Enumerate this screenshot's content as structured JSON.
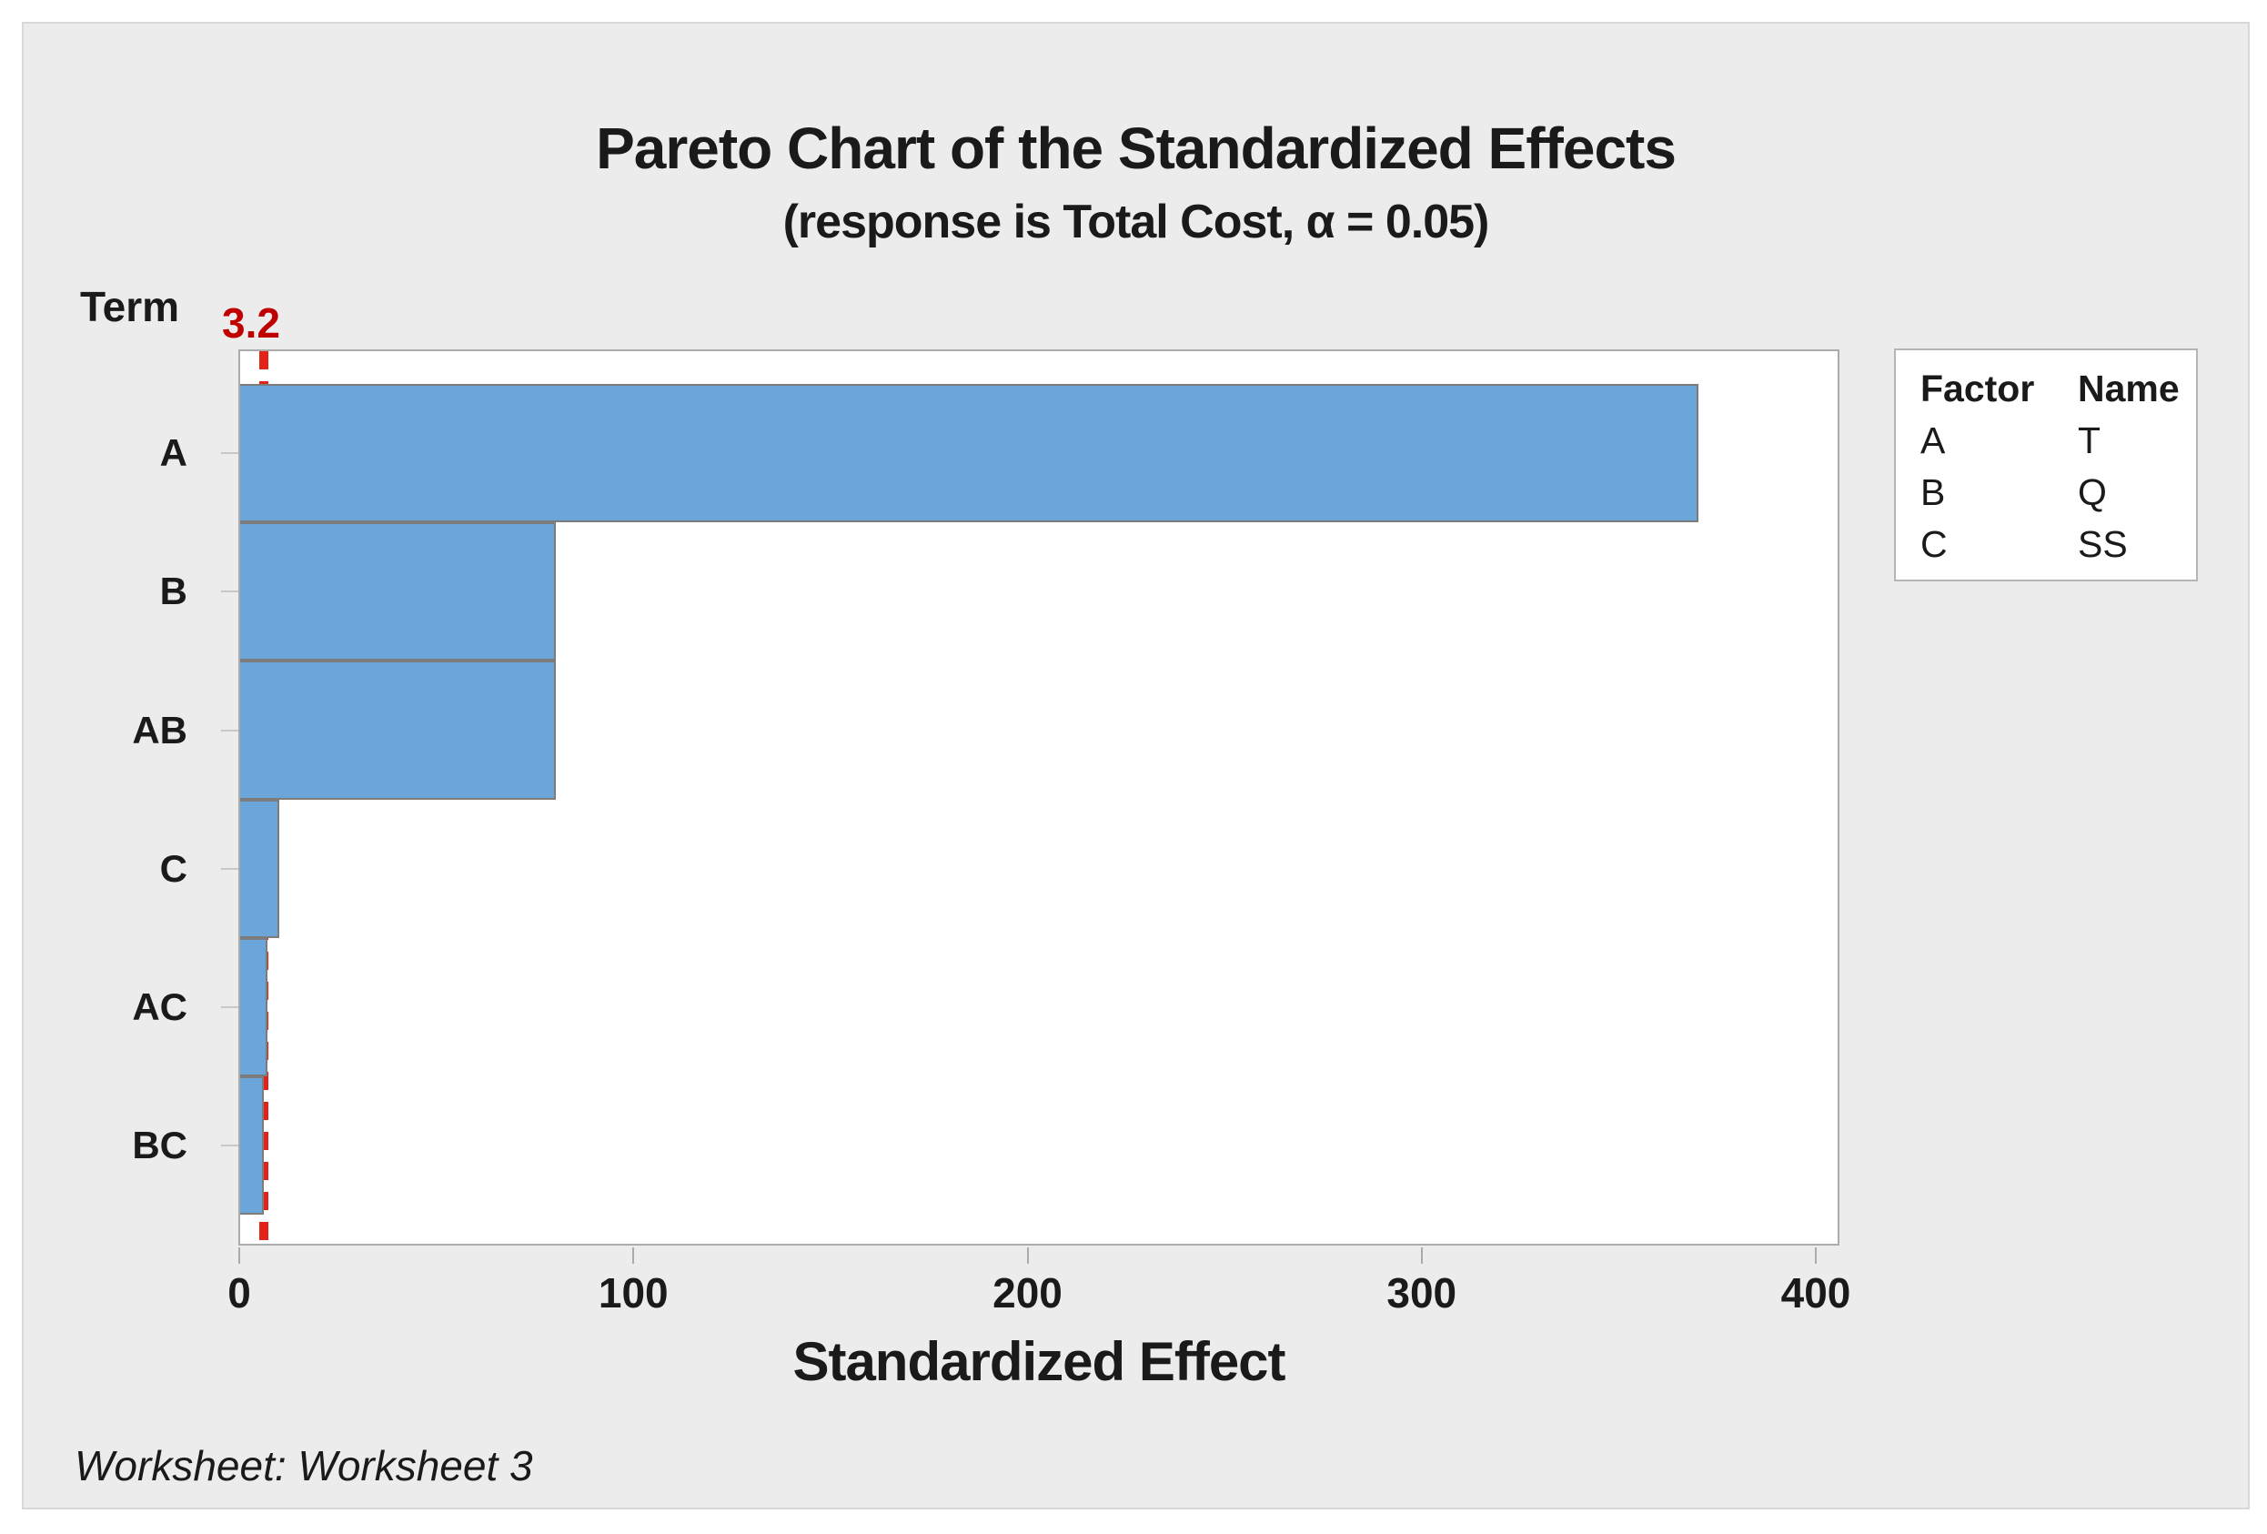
{
  "window": {
    "footer": "Worksheet: Worksheet 3"
  },
  "chart_data": {
    "type": "bar",
    "orientation": "horizontal",
    "title": "Pareto Chart of the Standardized Effects",
    "subtitle": "(response is Total Cost, α = 0.05)",
    "xlabel": "Standardized Effect",
    "ylabel": "Term",
    "categories": [
      "A",
      "B",
      "AB",
      "C",
      "AC",
      "BC"
    ],
    "values": [
      370,
      80,
      80,
      10,
      7,
      6
    ],
    "xlim": [
      0,
      400
    ],
    "x_ticks": [
      0,
      100,
      200,
      300,
      400
    ],
    "grid": false,
    "legend_position": "right",
    "reference_line": {
      "value": 3.2,
      "label": "3.2",
      "alpha": "0.05"
    },
    "colors": {
      "bar_fill": "#6ca5da",
      "bar_border": "#7c7c7c",
      "reference_line": "#e2231a",
      "reference_label": "#c00000",
      "panel_background": "#ececec",
      "plot_background": "#ffffff"
    }
  },
  "legend": {
    "headers": [
      "Factor",
      "Name"
    ],
    "rows": [
      {
        "factor": "A",
        "name": "T"
      },
      {
        "factor": "B",
        "name": "Q"
      },
      {
        "factor": "C",
        "name": "SS"
      }
    ]
  }
}
